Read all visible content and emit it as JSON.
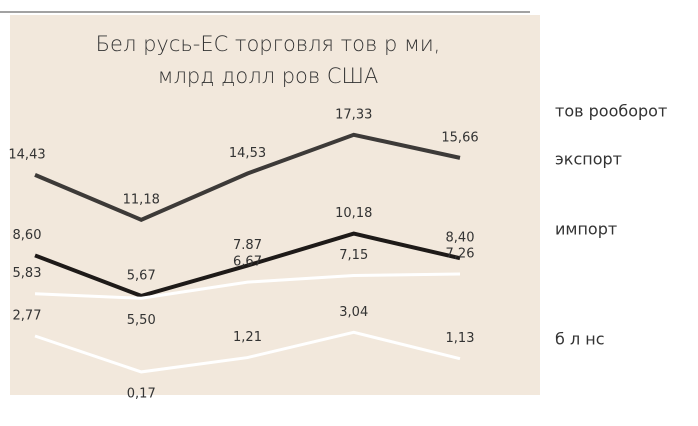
{
  "chart_data": {
    "type": "line",
    "title": [
      "Бел русь-ЕС торговля тов р ми,",
      "млрд долл ров США"
    ],
    "categories": [
      null,
      null,
      null,
      null,
      null
    ],
    "ylim": [
      -1.5,
      26
    ],
    "series": [
      {
        "name": "тов рооборот",
        "color": "#3d3a38",
        "values": [
          14.43,
          11.18,
          14.53,
          17.33,
          15.66
        ],
        "value_labels": [
          "14,43",
          "11,18",
          "14,53",
          "17,33",
          "15,66"
        ]
      },
      {
        "name": "экспорт",
        "color": "#1e1a18",
        "values": [
          8.6,
          5.67,
          7.87,
          10.18,
          8.4
        ],
        "value_labels": [
          "8,60",
          "5,67",
          "7.87",
          "10,18",
          "8,40"
        ]
      },
      {
        "name": "импорт",
        "color": "#ffffff",
        "values": [
          5.83,
          5.5,
          6.67,
          7.15,
          7.26
        ],
        "value_labels": [
          "5,83",
          "5,50",
          "6,67",
          "7,15",
          "7,26"
        ]
      },
      {
        "name": "б л нс",
        "color": "#ffffff",
        "values": [
          2.77,
          0.17,
          1.21,
          3.04,
          1.13
        ],
        "value_labels": [
          "2,77",
          "0,17",
          "1,21",
          "3,04",
          "1,13"
        ]
      }
    ]
  }
}
